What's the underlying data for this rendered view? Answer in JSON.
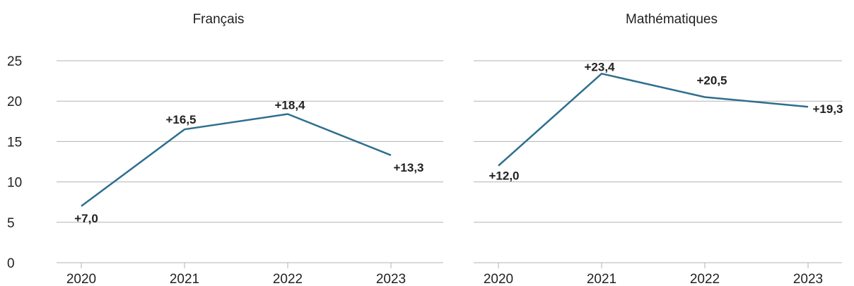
{
  "chart_data": [
    {
      "type": "line",
      "title": "Français",
      "x": [
        "2020",
        "2021",
        "2022",
        "2023"
      ],
      "values": [
        7.0,
        16.5,
        18.4,
        13.3
      ],
      "data_labels": [
        "+7,0",
        "+16,5",
        "+18,4",
        "+13,3"
      ],
      "ylim": [
        0,
        25
      ],
      "yticks": [
        "0",
        "5",
        "10",
        "15",
        "20",
        "25"
      ],
      "grid": true,
      "line_color": "#2e6f8e"
    },
    {
      "type": "line",
      "title": "Mathématiques",
      "x": [
        "2020",
        "2021",
        "2022",
        "2023"
      ],
      "values": [
        12.0,
        23.4,
        20.5,
        19.3
      ],
      "data_labels": [
        "+12,0",
        "+23,4",
        "+20,5",
        "+19,3"
      ],
      "ylim": [
        0,
        25
      ],
      "yticks": [
        "0",
        "5",
        "10",
        "15",
        "20",
        "25"
      ],
      "grid": true,
      "line_color": "#2e6f8e"
    }
  ]
}
